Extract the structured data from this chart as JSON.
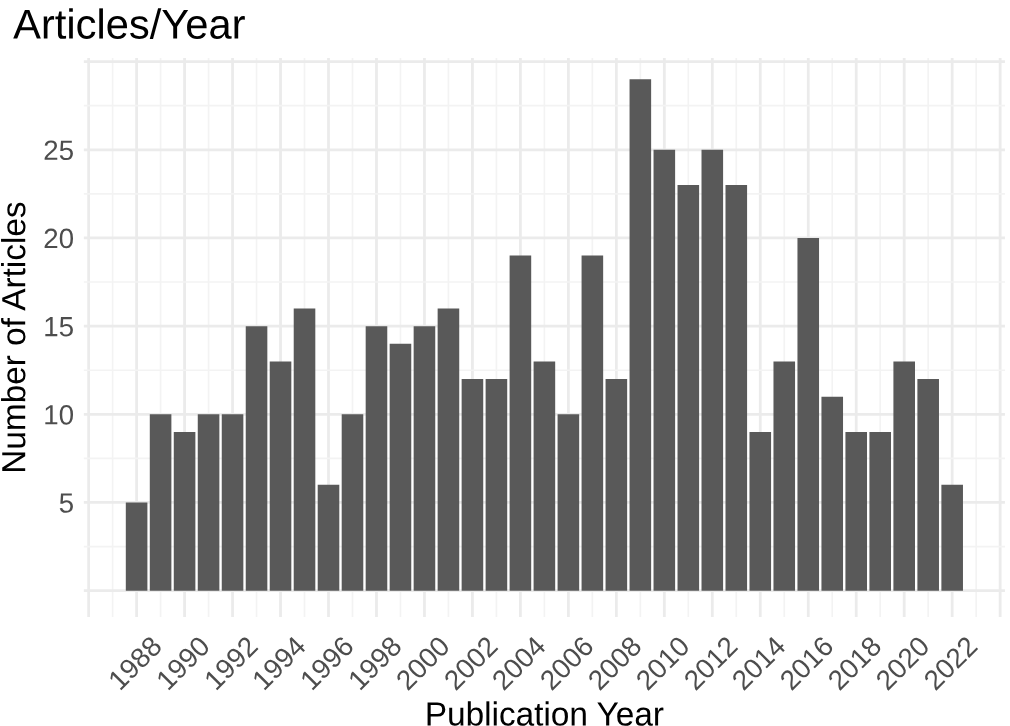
{
  "chart_data": {
    "type": "bar",
    "title": "Articles/Year",
    "xlabel": "Publication Year",
    "ylabel": "Number of Articles",
    "x": [
      1988,
      1989,
      1990,
      1991,
      1992,
      1993,
      1994,
      1995,
      1996,
      1997,
      1998,
      1999,
      2000,
      2001,
      2002,
      2003,
      2004,
      2005,
      2006,
      2007,
      2008,
      2009,
      2010,
      2011,
      2012,
      2013,
      2014,
      2015,
      2016,
      2017,
      2018,
      2019,
      2020,
      2021,
      2022
    ],
    "values": [
      5,
      10,
      9,
      10,
      10,
      15,
      13,
      16,
      6,
      10,
      15,
      14,
      15,
      16,
      12,
      12,
      19,
      13,
      10,
      19,
      12,
      29,
      25,
      23,
      25,
      23,
      9,
      13,
      20,
      11,
      9,
      9,
      13,
      12,
      6
    ],
    "color": "#595959",
    "xlim": [
      1985.8,
      2024.2
    ],
    "xticks": [
      {
        "value": 1986,
        "label": null
      },
      1988,
      1990,
      1992,
      1994,
      1996,
      1998,
      2000,
      2002,
      2004,
      2006,
      2008,
      2010,
      2012,
      2014,
      2016,
      2018,
      2020,
      2022,
      {
        "value": 2024,
        "label": null
      }
    ],
    "ylim": [
      -1.5,
      30.2
    ],
    "yticks": [
      {
        "value": 0,
        "label": null
      },
      5,
      10,
      15,
      20,
      25,
      {
        "value": 30,
        "label": null
      }
    ],
    "grid": true,
    "legend": false
  }
}
